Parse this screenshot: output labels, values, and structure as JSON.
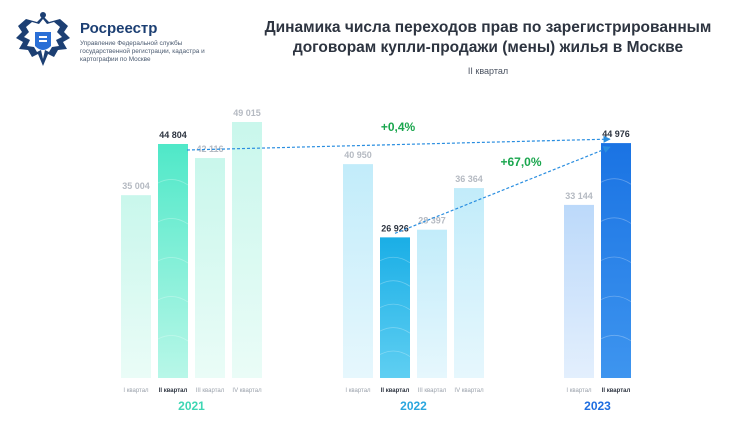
{
  "header": {
    "org_name": "Росреестр",
    "org_subtitle": "Управление Федеральной службы государственной регистрации, кадастра и картографии по Москве",
    "logo_icon": "eagle-emblem-icon"
  },
  "chart_data": {
    "type": "bar",
    "title": "Динамика числа переходов прав по зарегистрированным договорам купли-продажи (мены) жилья в Москве",
    "subtitle": "II квартал",
    "ylim": [
      0,
      50000
    ],
    "grid": false,
    "colors": {
      "2021": "#57e8cc",
      "2022": "#1fb3e6",
      "2023": "#1e7de6",
      "year_2021": "#3fd6b4",
      "year_2022": "#2aa6de",
      "year_2023": "#1f6ee0",
      "growth": "#1aa64e",
      "arrow": "#2a8ee0"
    },
    "groups": [
      {
        "year": "2021",
        "bars": [
          {
            "label": "I квартал",
            "value": 35004,
            "value_label": "35 004",
            "highlight": false
          },
          {
            "label": "II квартал",
            "value": 44804,
            "value_label": "44 804",
            "highlight": true
          },
          {
            "label": "III квартал",
            "value": 42116,
            "value_label": "42 116",
            "highlight": false
          },
          {
            "label": "IV квартал",
            "value": 49015,
            "value_label": "49 015",
            "highlight": false
          }
        ]
      },
      {
        "year": "2022",
        "bars": [
          {
            "label": "I квартал",
            "value": 40950,
            "value_label": "40 950",
            "highlight": false
          },
          {
            "label": "II квартал",
            "value": 26926,
            "value_label": "26 926",
            "highlight": true
          },
          {
            "label": "III квартал",
            "value": 28397,
            "value_label": "28 397",
            "highlight": false
          },
          {
            "label": "IV квартал",
            "value": 36364,
            "value_label": "36 364",
            "highlight": false
          }
        ]
      },
      {
        "year": "2023",
        "bars": [
          {
            "label": "I квартал",
            "value": 33144,
            "value_label": "33 144",
            "highlight": false
          },
          {
            "label": "II квартал",
            "value": 44976,
            "value_label": "44 976",
            "highlight": true
          }
        ]
      }
    ],
    "annotations": [
      {
        "text": "+0,4%",
        "from": "2021 II квартал",
        "to": "2023 II квартал"
      },
      {
        "text": "+67,0%",
        "from": "2022 II квартал",
        "to": "2023 II квартал"
      }
    ]
  }
}
